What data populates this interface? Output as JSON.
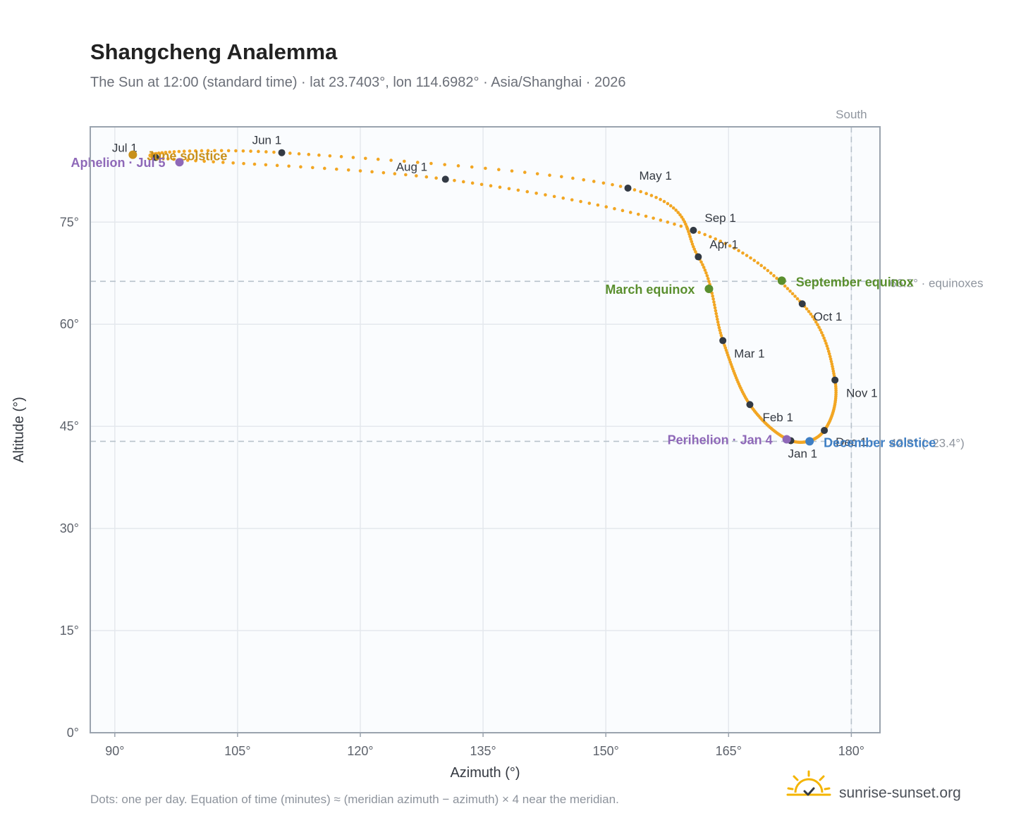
{
  "title": "Shangcheng Analemma",
  "subtitle": "The Sun at 12:00 (standard time) · lat 23.7403°, lon 114.6982° · Asia/Shanghai · 2026",
  "footnote": "Dots: one per day. Equation of time (minutes) ≈ (meridian azimuth − azimuth) × 4 near the meridian.",
  "brand": {
    "name": "sunrise-sunset.org",
    "icon": "sun-logo-icon"
  },
  "colors": {
    "curve": "#f2a623",
    "month_marker": "#333a44",
    "equinox": "#5a8f2e",
    "june_solstice": "#c8901b",
    "december_solstice": "#3f7fc4",
    "apsis": "#8e68b8",
    "reference_line": "#b8c2cb",
    "plot_bg": "#fafcfe",
    "grid": "#e4e8ed",
    "frame": "#9aa3ae"
  },
  "chart_data": {
    "type": "scatter",
    "title": "Shangcheng Analemma",
    "xlabel": "Azimuth (°)",
    "ylabel": "Altitude (°)",
    "xlim": [
      87,
      183.5
    ],
    "ylim": [
      0,
      89
    ],
    "xticks": [
      90,
      105,
      120,
      135,
      150,
      165,
      180
    ],
    "yticks": [
      0,
      15,
      30,
      45,
      60,
      75
    ],
    "x_tick_labels": [
      "90°",
      "105°",
      "120°",
      "135°",
      "150°",
      "165°",
      "180°"
    ],
    "y_tick_labels": [
      "0°",
      "15°",
      "30°",
      "45°",
      "60°",
      "75°"
    ],
    "grid": true,
    "series": [
      {
        "marker": "dot",
        "points": [
          {
            "month": 1,
            "x": 172.6,
            "y": 42.9
          },
          {
            "month": 2,
            "x": 167.6,
            "y": 48.2
          },
          {
            "month": 3,
            "x": 164.3,
            "y": 57.6
          },
          {
            "month": 4,
            "x": 161.3,
            "y": 69.9
          },
          {
            "month": 5,
            "x": 152.7,
            "y": 80.0
          },
          {
            "month": 6,
            "x": 110.4,
            "y": 85.2
          },
          {
            "month": 7,
            "x": 95.0,
            "y": 84.5
          },
          {
            "month": 8,
            "x": 130.4,
            "y": 81.3
          },
          {
            "month": 9,
            "x": 160.7,
            "y": 73.8
          },
          {
            "month": 10,
            "x": 174.0,
            "y": 63.0
          },
          {
            "month": 11,
            "x": 178.0,
            "y": 51.8
          },
          {
            "month": 12,
            "x": 176.7,
            "y": 44.4
          }
        ]
      }
    ],
    "month_markers": [
      {
        "label": "Jan 1",
        "x": 172.6,
        "y": 42.9
      },
      {
        "label": "Feb 1",
        "x": 167.6,
        "y": 48.2
      },
      {
        "label": "Mar 1",
        "x": 164.3,
        "y": 57.6
      },
      {
        "label": "Apr 1",
        "x": 161.3,
        "y": 69.9
      },
      {
        "label": "May 1",
        "x": 152.7,
        "y": 80.0
      },
      {
        "label": "Jun 1",
        "x": 110.4,
        "y": 85.2
      },
      {
        "label": "Jul 1",
        "x": 95.0,
        "y": 84.5
      },
      {
        "label": "Aug 1",
        "x": 130.4,
        "y": 81.3
      },
      {
        "label": "Sep 1",
        "x": 160.7,
        "y": 73.8
      },
      {
        "label": "Oct 1",
        "x": 174.0,
        "y": 63.0
      },
      {
        "label": "Nov 1",
        "x": 178.0,
        "y": 51.8
      },
      {
        "label": "Dec 1",
        "x": 176.7,
        "y": 44.4
      }
    ],
    "events": [
      {
        "label": "March equinox",
        "x": 162.6,
        "y": 65.2,
        "color_key": "equinox"
      },
      {
        "label": "September equinox",
        "x": 171.5,
        "y": 66.4,
        "color_key": "equinox"
      },
      {
        "label": "June solstice",
        "x": 92.2,
        "y": 84.9,
        "color_key": "june_solstice"
      },
      {
        "label": "December solstice",
        "x": 174.9,
        "y": 42.8,
        "color_key": "december_solstice"
      },
      {
        "label": "Perihelion · Jan 4",
        "x": 172.1,
        "y": 43.1,
        "color_key": "apsis"
      },
      {
        "label": "Aphelion · Jul 5",
        "x": 97.9,
        "y": 83.8,
        "color_key": "apsis"
      }
    ],
    "reference_lines": [
      {
        "orientation": "horizontal",
        "value": 66.3,
        "label": "66.3° · equinoxes"
      },
      {
        "orientation": "horizontal",
        "value": 42.8,
        "label": "42.8° (−23.4°)"
      },
      {
        "orientation": "vertical",
        "value": 180,
        "label": "South"
      }
    ]
  }
}
